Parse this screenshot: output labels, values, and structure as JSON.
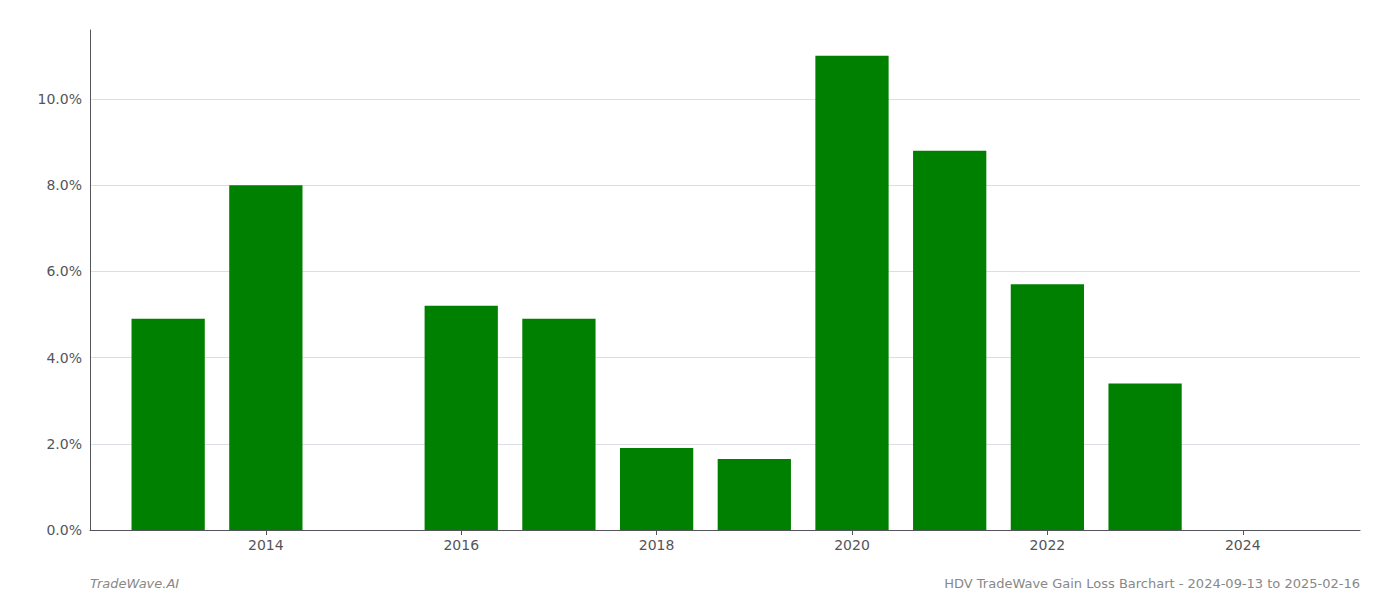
{
  "chart_data": {
    "type": "bar",
    "x": [
      2013,
      2014,
      2016,
      2017,
      2018,
      2019,
      2020,
      2021,
      2022,
      2023
    ],
    "values": [
      0.049,
      0.08,
      0.052,
      0.049,
      0.019,
      0.0165,
      0.11,
      0.088,
      0.057,
      0.034
    ],
    "color": "#008000",
    "xlim": [
      2012.2,
      2025.2
    ],
    "xticks": [
      2014,
      2016,
      2018,
      2020,
      2022,
      2024
    ],
    "ylim": [
      0,
      0.116
    ],
    "yticks": [
      {
        "value": 0,
        "label": "0.0%"
      },
      {
        "value": 0.02,
        "label": "2.0%"
      },
      {
        "value": 0.04,
        "label": "4.0%"
      },
      {
        "value": 0.06,
        "label": "6.0%"
      },
      {
        "value": 0.08,
        "label": "8.0%"
      },
      {
        "value": 0.1,
        "label": "10.0%"
      }
    ],
    "grid": true,
    "annotations": [
      "TradeWave.AI",
      "HDV TradeWave Gain Loss Barchart - 2024-09-13 to 2025-02-16"
    ]
  }
}
